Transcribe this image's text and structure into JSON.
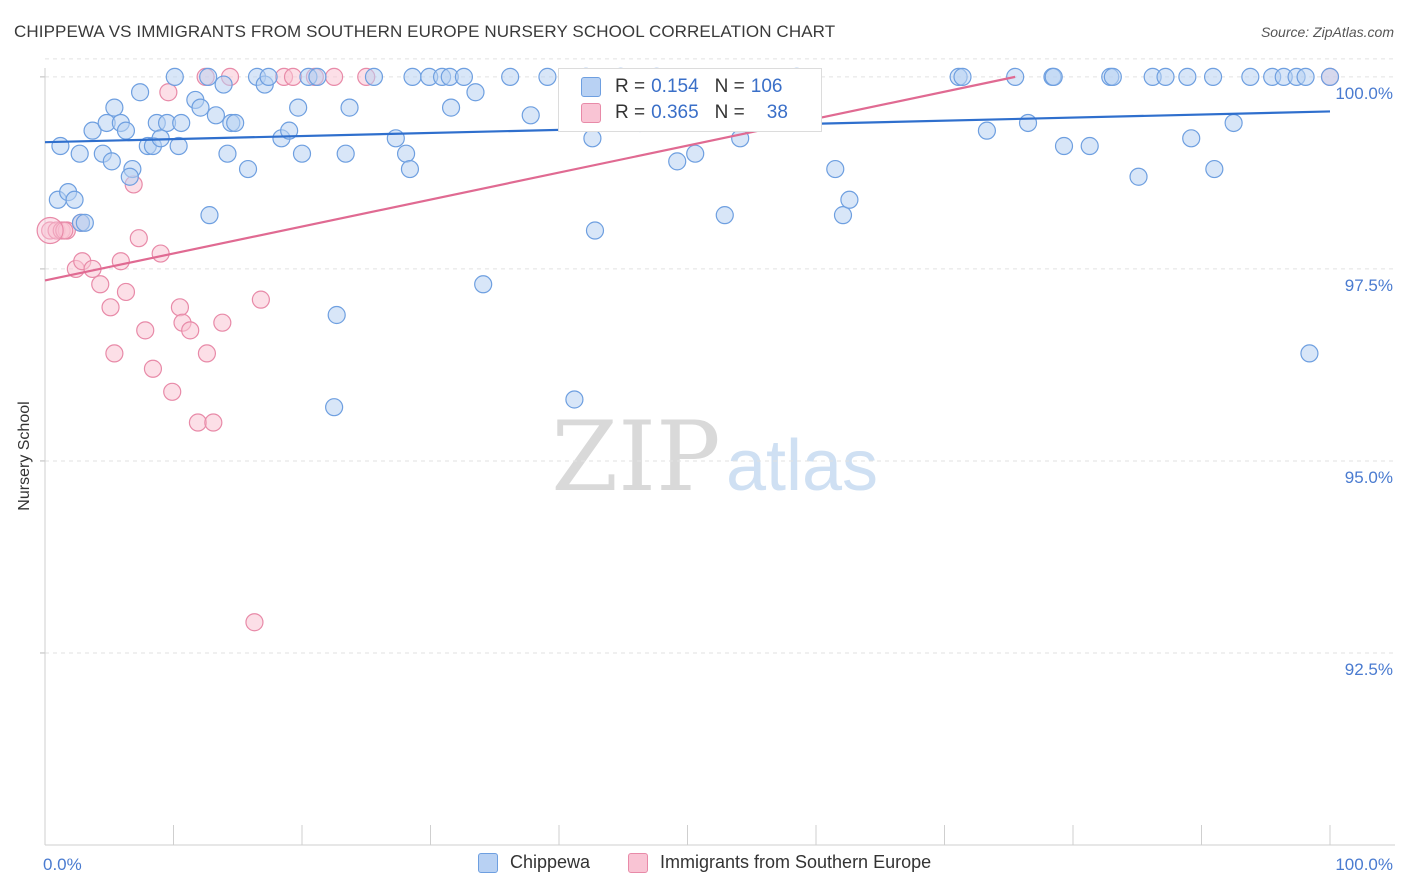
{
  "title": "CHIPPEWA VS IMMIGRANTS FROM SOUTHERN EUROPE NURSERY SCHOOL CORRELATION CHART",
  "source": "Source: ZipAtlas.com",
  "watermark": {
    "zip": "ZIP",
    "atlas": "atlas"
  },
  "legend": {
    "r_label": "R =",
    "n_label": "N =",
    "rows": [
      {
        "r": "0.154",
        "n": "106",
        "fill": "#b8d1f3",
        "stroke": "#6e9fe0"
      },
      {
        "r": "0.365",
        "n": "38",
        "fill": "#f9c4d4",
        "stroke": "#e88aa8"
      }
    ]
  },
  "chart_data": {
    "type": "scatter",
    "title": "CHIPPEWA VS IMMIGRANTS FROM SOUTHERN EUROPE NURSERY SCHOOL CORRELATION CHART",
    "xlabel": "",
    "ylabel": "Nursery School",
    "xlim": [
      0,
      100
    ],
    "ylim": [
      90.0,
      100.35
    ],
    "x_tick_labels": [
      "0.0%",
      "100.0%"
    ],
    "y_ticks": [
      92.5,
      95.0,
      97.5,
      100.0
    ],
    "y_tick_labels": [
      "92.5%",
      "95.0%",
      "97.5%",
      "100.0%"
    ],
    "grid": "horizontal dashed",
    "legend_position": "top-center",
    "series": [
      {
        "name": "Chippewa",
        "color": "#6e9fe0",
        "fill": "#b8d1f3",
        "line_color": "#2f6fcd",
        "trend": {
          "x0": 0,
          "y0": 99.15,
          "x1": 100,
          "y1": 99.55
        },
        "points": [
          [
            1.0,
            98.4
          ],
          [
            1.8,
            98.5
          ],
          [
            2.3,
            98.4
          ],
          [
            2.8,
            98.1
          ],
          [
            2.7,
            99.0
          ],
          [
            3.7,
            99.3
          ],
          [
            4.5,
            99.0
          ],
          [
            4.8,
            99.4
          ],
          [
            5.4,
            99.6
          ],
          [
            5.9,
            99.4
          ],
          [
            6.3,
            99.3
          ],
          [
            6.8,
            98.8
          ],
          [
            7.4,
            99.8
          ],
          [
            8.0,
            99.1
          ],
          [
            8.4,
            99.1
          ],
          [
            8.7,
            99.4
          ],
          [
            9.5,
            99.4
          ],
          [
            10.4,
            99.1
          ],
          [
            10.6,
            99.4
          ],
          [
            10.1,
            100.0
          ],
          [
            11.7,
            99.7
          ],
          [
            12.1,
            99.6
          ],
          [
            12.7,
            100.0
          ],
          [
            12.8,
            98.2
          ],
          [
            13.3,
            99.5
          ],
          [
            13.9,
            99.9
          ],
          [
            14.5,
            99.4
          ],
          [
            14.8,
            99.4
          ],
          [
            15.8,
            98.8
          ],
          [
            16.5,
            100.0
          ],
          [
            17.1,
            99.9
          ],
          [
            17.4,
            100.0
          ],
          [
            18.4,
            99.2
          ],
          [
            19.0,
            99.3
          ],
          [
            19.7,
            99.6
          ],
          [
            20.5,
            100.0
          ],
          [
            21.2,
            100.0
          ],
          [
            22.7,
            96.9
          ],
          [
            22.5,
            95.7
          ],
          [
            23.4,
            99.0
          ],
          [
            23.7,
            99.6
          ],
          [
            25.6,
            100.0
          ],
          [
            27.3,
            99.2
          ],
          [
            28.1,
            99.0
          ],
          [
            28.4,
            98.8
          ],
          [
            28.6,
            100.0
          ],
          [
            29.9,
            100.0
          ],
          [
            30.9,
            100.0
          ],
          [
            31.5,
            100.0
          ],
          [
            31.6,
            99.6
          ],
          [
            32.6,
            100.0
          ],
          [
            33.5,
            99.8
          ],
          [
            34.1,
            97.3
          ],
          [
            36.2,
            100.0
          ],
          [
            37.8,
            99.5
          ],
          [
            39.1,
            100.0
          ],
          [
            41.2,
            95.8
          ],
          [
            42.1,
            100.0
          ],
          [
            42.6,
            99.2
          ],
          [
            42.8,
            98.0
          ],
          [
            43.3,
            99.4
          ],
          [
            44.8,
            100.0
          ],
          [
            46.3,
            99.4
          ],
          [
            47.6,
            100.0
          ],
          [
            49.2,
            98.9
          ],
          [
            50.6,
            99.0
          ],
          [
            52.9,
            98.2
          ],
          [
            54.1,
            99.2
          ],
          [
            58.5,
            100.0
          ],
          [
            59.0,
            99.7
          ],
          [
            61.5,
            98.8
          ],
          [
            62.1,
            98.2
          ],
          [
            62.6,
            98.4
          ],
          [
            71.1,
            100.0
          ],
          [
            71.4,
            100.0
          ],
          [
            73.3,
            99.3
          ],
          [
            75.5,
            100.0
          ],
          [
            76.5,
            99.4
          ],
          [
            78.4,
            100.0
          ],
          [
            78.5,
            100.0
          ],
          [
            79.3,
            99.1
          ],
          [
            81.3,
            99.1
          ],
          [
            82.9,
            100.0
          ],
          [
            83.1,
            100.0
          ],
          [
            85.1,
            98.7
          ],
          [
            86.2,
            100.0
          ],
          [
            87.2,
            100.0
          ],
          [
            88.9,
            100.0
          ],
          [
            89.2,
            99.2
          ],
          [
            90.9,
            100.0
          ],
          [
            91.0,
            98.8
          ],
          [
            92.5,
            99.4
          ],
          [
            93.8,
            100.0
          ],
          [
            95.5,
            100.0
          ],
          [
            96.4,
            100.0
          ],
          [
            97.4,
            100.0
          ],
          [
            98.1,
            100.0
          ],
          [
            98.4,
            96.4
          ],
          [
            100.0,
            100.0
          ],
          [
            1.2,
            99.1
          ],
          [
            3.1,
            98.1
          ],
          [
            5.2,
            98.9
          ],
          [
            6.6,
            98.7
          ],
          [
            9.0,
            99.2
          ],
          [
            14.2,
            99.0
          ],
          [
            20.0,
            99.0
          ]
        ]
      },
      {
        "name": "Immigrants from Southern Europe",
        "color": "#e88aa8",
        "fill": "#f9c4d4",
        "line_color": "#e06a92",
        "trend": {
          "x0": 0,
          "y0": 97.35,
          "x1": 75.5,
          "y1": 100.0
        },
        "points": [
          [
            0.4,
            98.0
          ],
          [
            0.9,
            98.0
          ],
          [
            1.3,
            98.0
          ],
          [
            1.7,
            98.0
          ],
          [
            2.4,
            97.5
          ],
          [
            2.9,
            97.6
          ],
          [
            3.7,
            97.5
          ],
          [
            4.3,
            97.3
          ],
          [
            5.1,
            97.0
          ],
          [
            5.4,
            96.4
          ],
          [
            5.9,
            97.6
          ],
          [
            6.3,
            97.2
          ],
          [
            6.9,
            98.6
          ],
          [
            7.3,
            97.9
          ],
          [
            7.8,
            96.7
          ],
          [
            8.4,
            96.2
          ],
          [
            9.0,
            97.7
          ],
          [
            9.6,
            99.8
          ],
          [
            9.9,
            95.9
          ],
          [
            10.5,
            97.0
          ],
          [
            10.7,
            96.8
          ],
          [
            11.3,
            96.7
          ],
          [
            11.9,
            95.5
          ],
          [
            12.5,
            100.0
          ],
          [
            12.6,
            96.4
          ],
          [
            13.1,
            95.5
          ],
          [
            13.8,
            96.8
          ],
          [
            14.4,
            100.0
          ],
          [
            16.3,
            92.9
          ],
          [
            16.8,
            97.1
          ],
          [
            18.6,
            100.0
          ],
          [
            19.3,
            100.0
          ],
          [
            21.0,
            100.0
          ],
          [
            22.5,
            100.0
          ],
          [
            25.0,
            100.0
          ],
          [
            2.8,
            98.1
          ],
          [
            100.0,
            100.0
          ],
          [
            1.5,
            98.0
          ]
        ]
      }
    ]
  }
}
